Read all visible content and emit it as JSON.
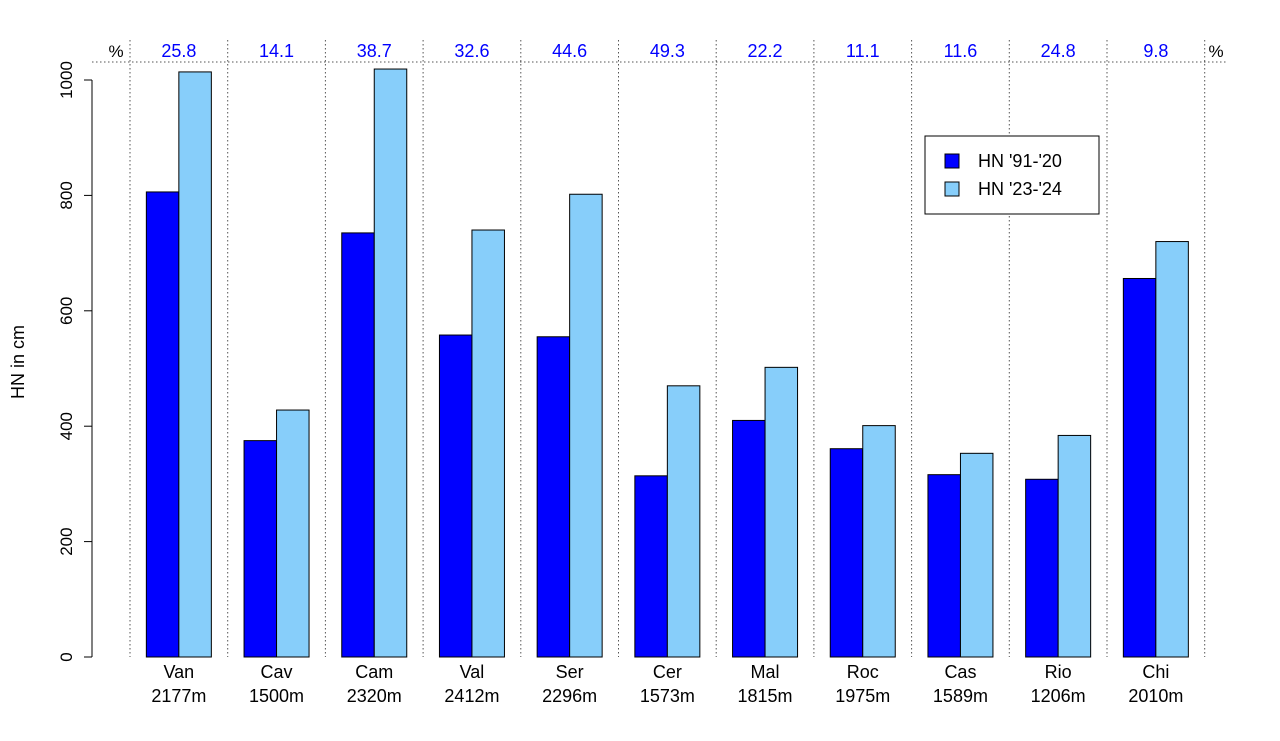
{
  "chart_data": {
    "type": "bar",
    "ylabel": "HN in cm",
    "ylim": [
      0,
      1000
    ],
    "yticks": [
      0,
      200,
      400,
      600,
      800,
      1000
    ],
    "percent_unit_label": "%",
    "categories": [
      {
        "name": "Van",
        "elevation": "2177m",
        "percent": "25.8"
      },
      {
        "name": "Cav",
        "elevation": "1500m",
        "percent": "14.1"
      },
      {
        "name": "Cam",
        "elevation": "2320m",
        "percent": "38.7"
      },
      {
        "name": "Val",
        "elevation": "2412m",
        "percent": "32.6"
      },
      {
        "name": "Ser",
        "elevation": "2296m",
        "percent": "44.6"
      },
      {
        "name": "Cer",
        "elevation": "1573m",
        "percent": "49.3"
      },
      {
        "name": "Mal",
        "elevation": "1815m",
        "percent": "22.2"
      },
      {
        "name": "Roc",
        "elevation": "1975m",
        "percent": "11.1"
      },
      {
        "name": "Cas",
        "elevation": "1589m",
        "percent": "11.6"
      },
      {
        "name": "Rio",
        "elevation": "1206m",
        "percent": "24.8"
      },
      {
        "name": "Chi",
        "elevation": "2010m",
        "percent": "9.8"
      }
    ],
    "series": [
      {
        "name": "HN '91-'20",
        "color": "#0000ff",
        "values": [
          806,
          375,
          735,
          558,
          555,
          314,
          410,
          361,
          316,
          308,
          656
        ]
      },
      {
        "name": "HN '23-'24",
        "color": "#87cefa",
        "values": [
          1014,
          428,
          1019,
          740,
          802,
          470,
          502,
          401,
          353,
          384,
          720
        ]
      }
    ],
    "percent_color": "#0000ff",
    "legend_position": "top-right",
    "grid": "vertical dotted separators"
  }
}
